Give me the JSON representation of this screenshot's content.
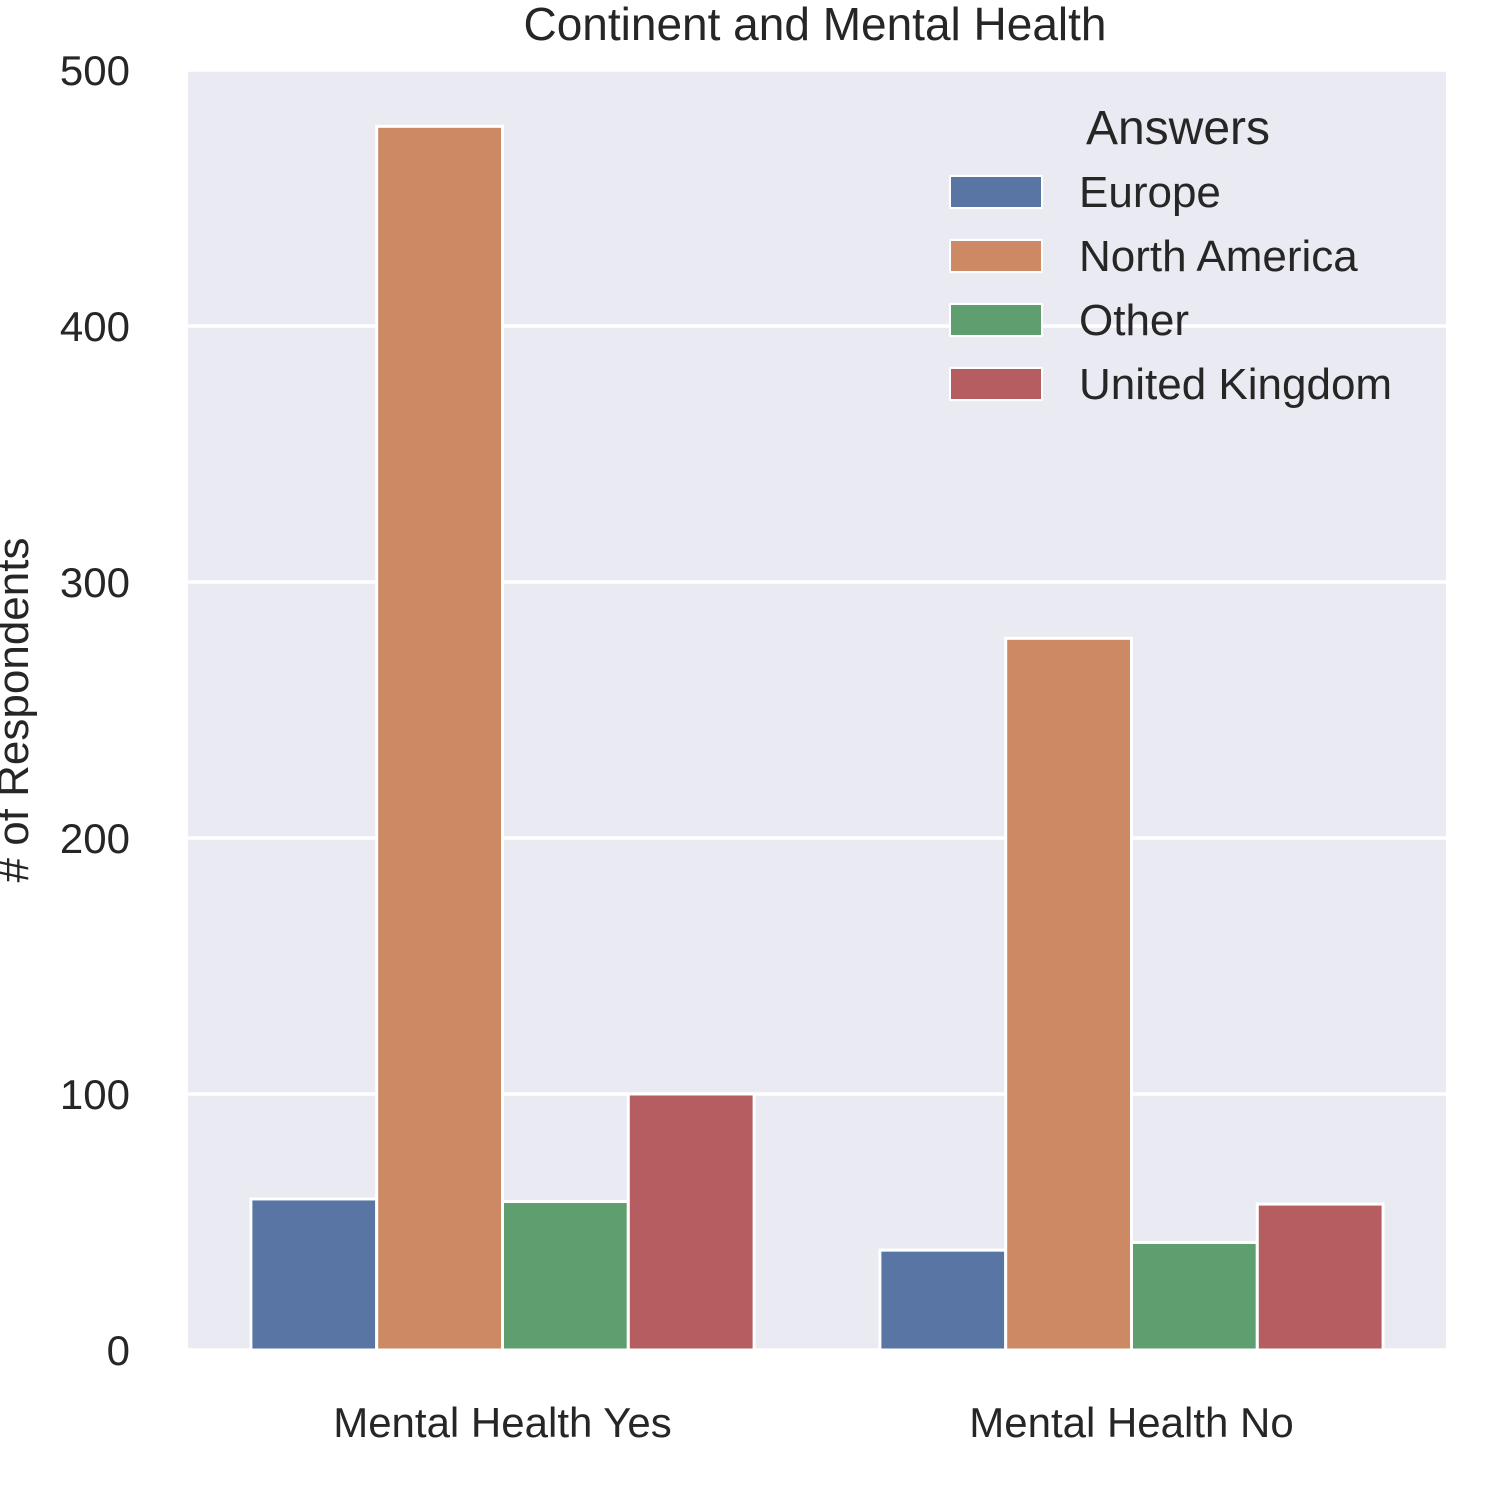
{
  "chart_data": {
    "type": "bar",
    "title": "Continent and Mental Health",
    "xlabel": "",
    "ylabel": "# of Respondents",
    "categories": [
      "Mental Health Yes",
      "Mental Health No"
    ],
    "series": [
      {
        "name": "Europe",
        "color": "#5875a4",
        "values": [
          59,
          39
        ]
      },
      {
        "name": "North America",
        "color": "#cc8963",
        "values": [
          478,
          278
        ]
      },
      {
        "name": "Other",
        "color": "#5f9e6e",
        "values": [
          58,
          42
        ]
      },
      {
        "name": "United Kingdom",
        "color": "#b55d60",
        "values": [
          100,
          57
        ]
      }
    ],
    "ylim": [
      0,
      500
    ],
    "yticks": [
      0,
      100,
      200,
      300,
      400,
      500
    ],
    "legend": {
      "title": "Answers",
      "placement": "top-right"
    },
    "grid": true,
    "background": "#eaeaf2"
  }
}
